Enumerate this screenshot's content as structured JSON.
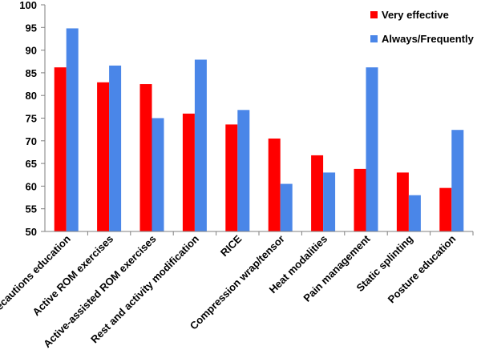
{
  "chart_data": {
    "type": "bar",
    "categories": [
      "Precautions education",
      "Active ROM exercises",
      "Active-assisted ROM exercises",
      "Rest and activity modification",
      "RICE",
      "Compression wrap/tensor",
      "Heat modalities",
      "Pain management",
      "Static splinting",
      "Posture education"
    ],
    "series": [
      {
        "name": "Very effective",
        "color": "#ff0000",
        "values": [
          86.2,
          82.9,
          82.5,
          76.0,
          73.6,
          70.5,
          66.8,
          63.8,
          63.0,
          59.6
        ]
      },
      {
        "name": "Always/Frequently",
        "color": "#4a86e8",
        "values": [
          94.8,
          86.6,
          75.0,
          87.9,
          76.8,
          60.5,
          63.0,
          86.2,
          58.0,
          72.4
        ]
      }
    ],
    "ylim": [
      50,
      100
    ],
    "yticks": [
      50,
      55,
      60,
      65,
      70,
      75,
      80,
      85,
      90,
      95,
      100
    ],
    "grid": false,
    "legend": "top-right",
    "title": "",
    "xlabel": "",
    "ylabel": ""
  }
}
